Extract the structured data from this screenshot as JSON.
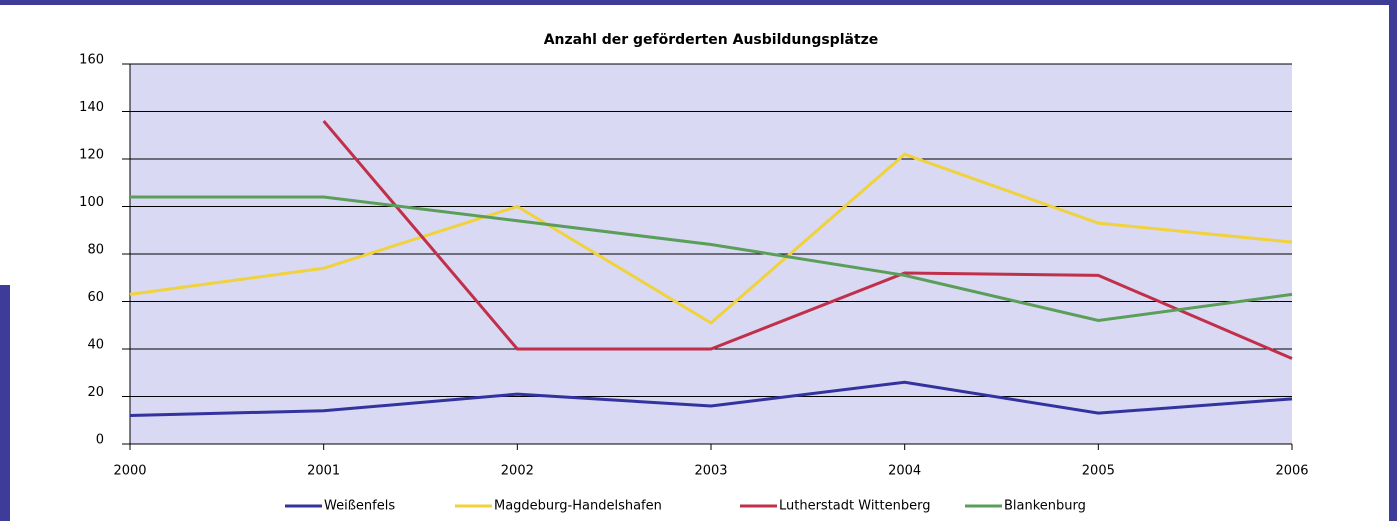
{
  "chart_data": {
    "type": "line",
    "title": "Anzahl der geförderten Ausbildungsplätze",
    "categories": [
      "2000",
      "2001",
      "2002",
      "2003",
      "2004",
      "2005",
      "2006"
    ],
    "series": [
      {
        "name": "Weißenfels",
        "color": "#33339f",
        "values": [
          12,
          14,
          21,
          16,
          26,
          13,
          19
        ]
      },
      {
        "name": "Magdeburg-Handelshafen",
        "color": "#f0d23c",
        "values": [
          63,
          74,
          100,
          51,
          122,
          93,
          85
        ]
      },
      {
        "name": "Lutherstadt Wittenberg",
        "color": "#c0304a",
        "values": [
          null,
          136,
          40,
          40,
          72,
          71,
          36
        ]
      },
      {
        "name": "Blankenburg",
        "color": "#5a9e5a",
        "values": [
          104,
          104,
          94,
          84,
          71,
          52,
          63
        ]
      }
    ],
    "ylim": [
      0,
      160
    ],
    "yticks": [
      0,
      20,
      40,
      60,
      80,
      100,
      120,
      140,
      160
    ],
    "grid": true,
    "legend": "bottom"
  }
}
